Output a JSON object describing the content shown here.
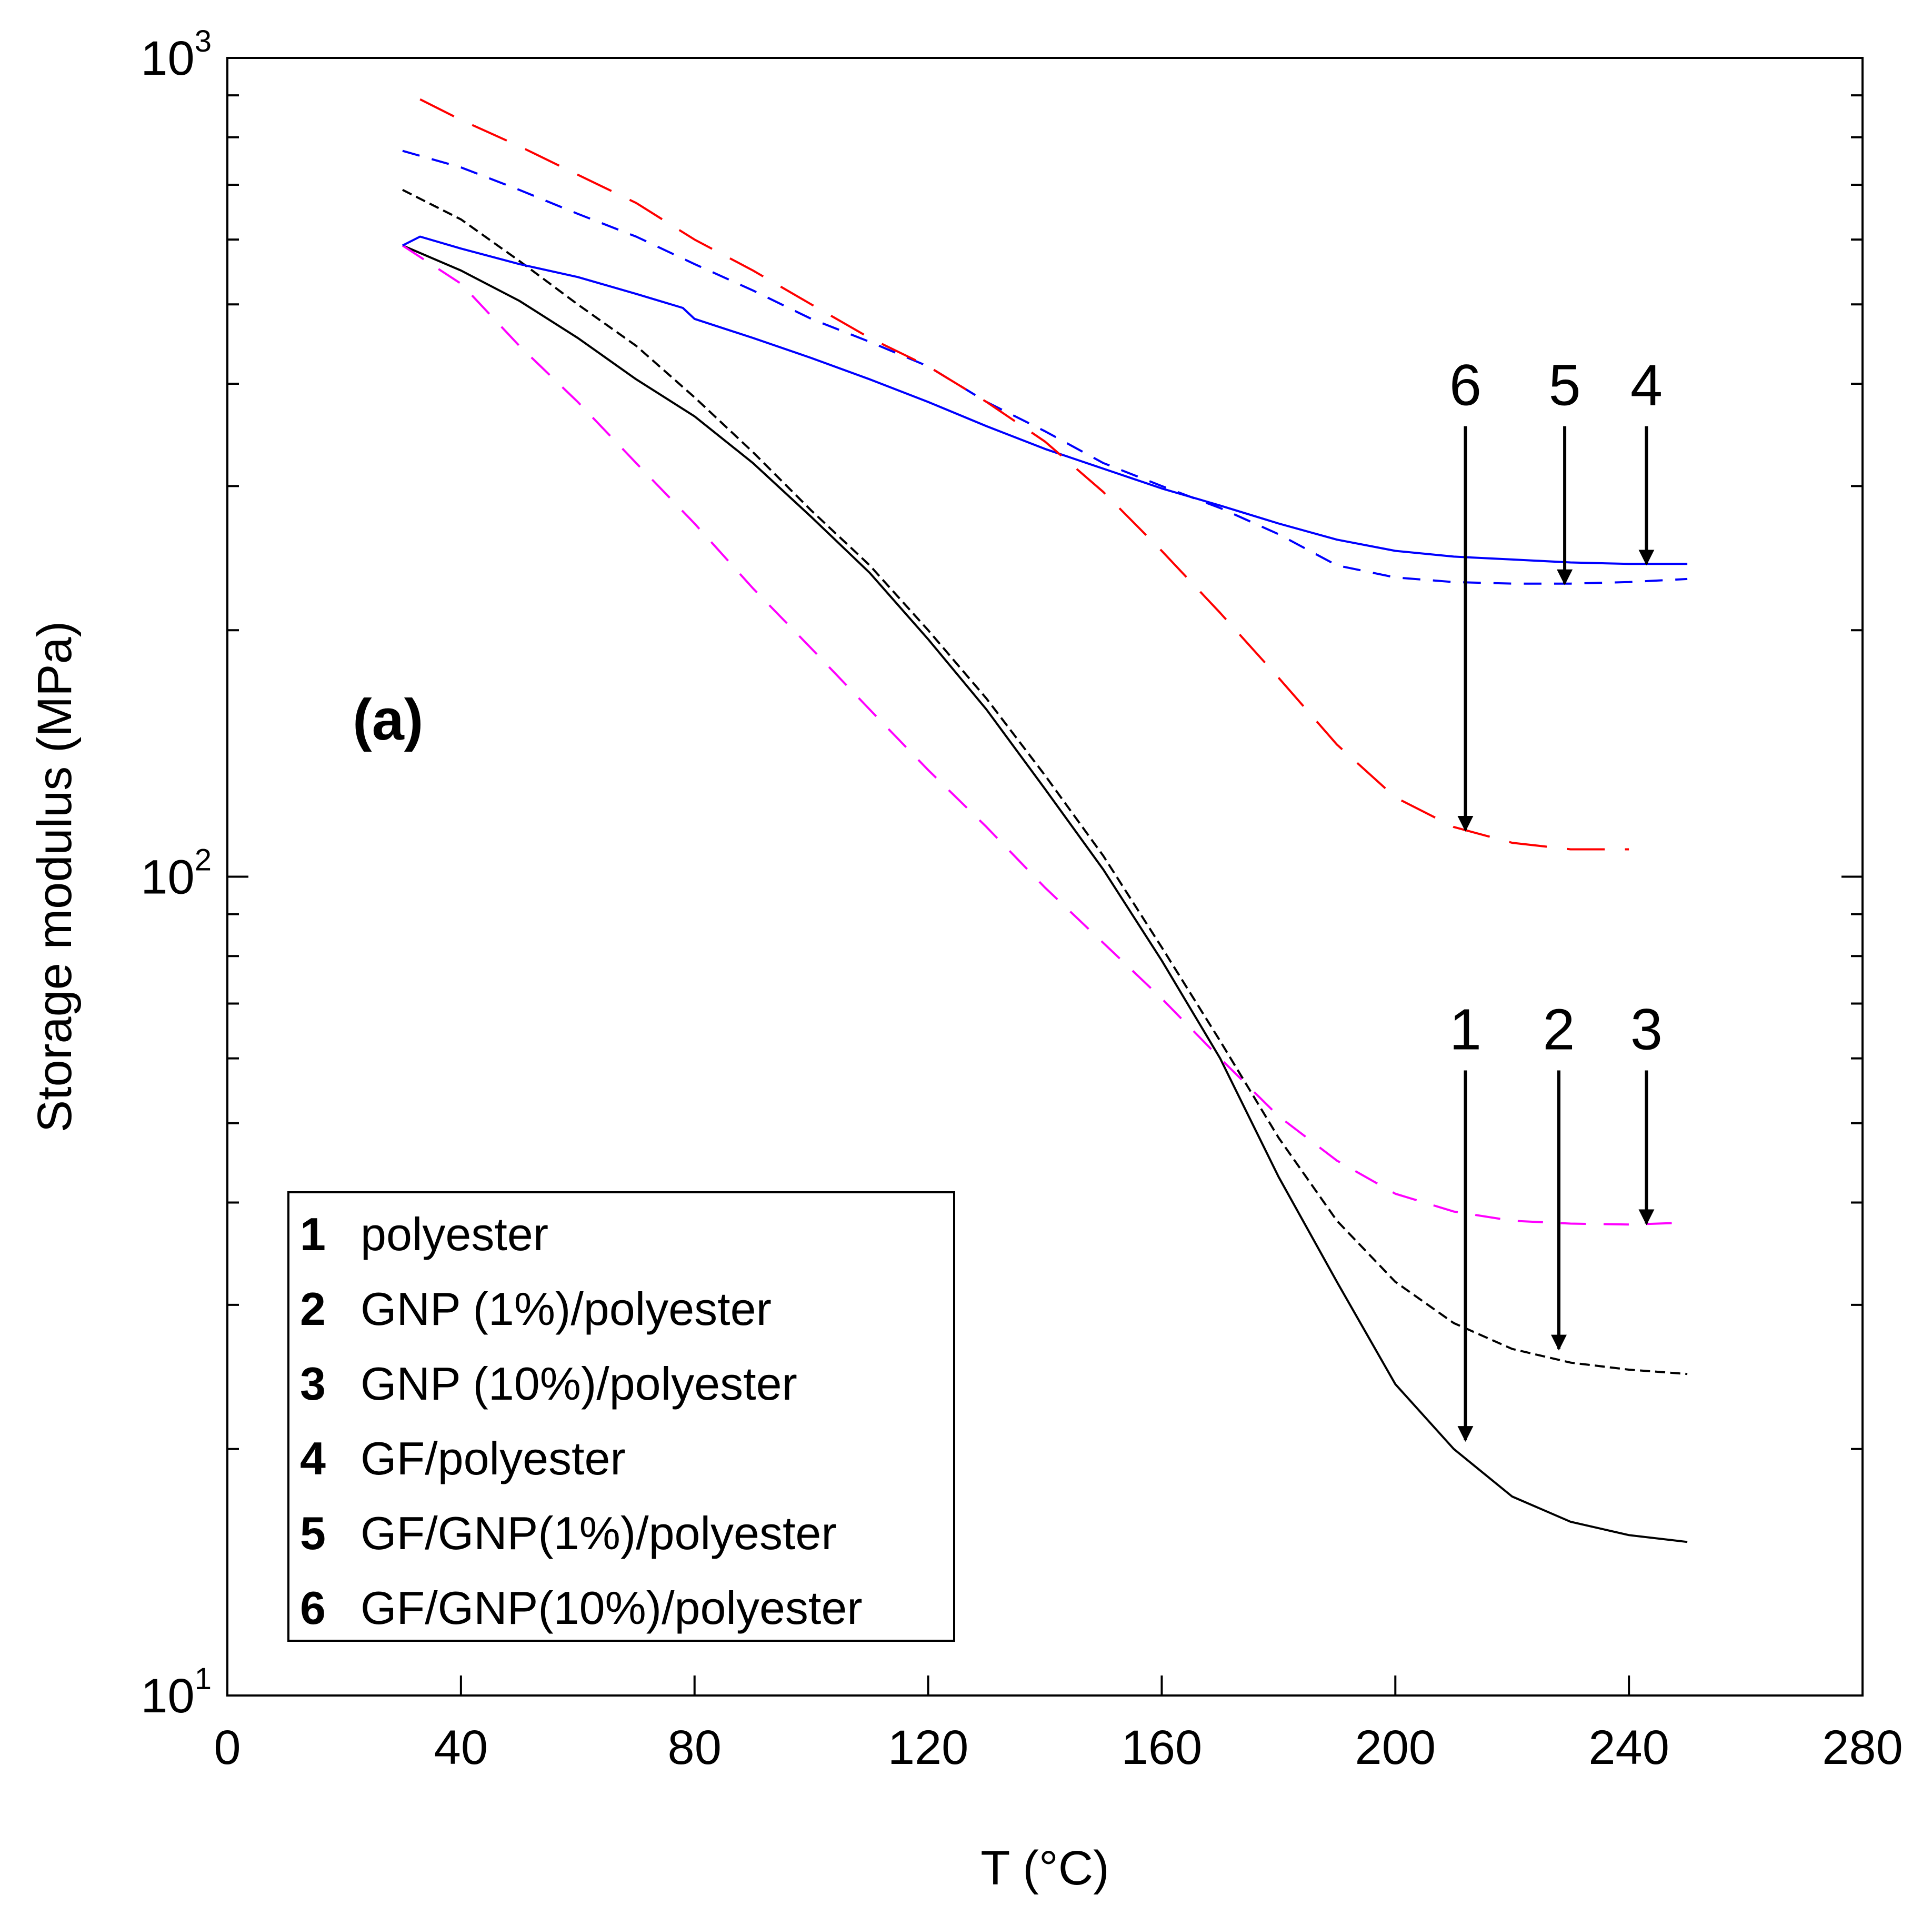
{
  "chart_data": {
    "type": "line",
    "panel_label": "(a)",
    "xlabel": "T (°C)",
    "ylabel": "Storage modulus (MPa)",
    "xlim": [
      0,
      280
    ],
    "ylim": [
      10,
      1000
    ],
    "yscale": "log",
    "x_ticks": [
      "0",
      "40",
      "80",
      "120",
      "160",
      "200",
      "240",
      "280"
    ],
    "y_tick_labels": [
      {
        "base": "10",
        "exp": "1",
        "value": 10
      },
      {
        "base": "10",
        "exp": "2",
        "value": 100
      },
      {
        "base": "10",
        "exp": "3",
        "value": 1000
      }
    ],
    "series": [
      {
        "id": "1",
        "name": "polyester",
        "color": "#000000",
        "dash": "solid",
        "x": [
          30,
          40,
          50,
          60,
          70,
          80,
          90,
          100,
          110,
          120,
          130,
          140,
          150,
          160,
          170,
          180,
          190,
          200,
          210,
          220,
          230,
          240,
          250
        ],
        "y": [
          590,
          550,
          505,
          455,
          405,
          365,
          320,
          275,
          235,
          195,
          160,
          128,
          102,
          79,
          60,
          43,
          32,
          24,
          20,
          17.5,
          16.3,
          15.7,
          15.4
        ]
      },
      {
        "id": "2",
        "name": "GNP (1%)/polyester",
        "color": "#000000",
        "dash": "8,4",
        "x": [
          30,
          40,
          50,
          60,
          70,
          80,
          90,
          100,
          110,
          120,
          130,
          140,
          150,
          160,
          170,
          180,
          190,
          200,
          210,
          220,
          230,
          240,
          250
        ],
        "y": [
          690,
          635,
          565,
          500,
          445,
          385,
          330,
          280,
          240,
          200,
          165,
          133,
          106,
          82,
          63,
          48,
          38,
          32,
          28.5,
          26.5,
          25.5,
          25,
          24.7
        ]
      },
      {
        "id": "3",
        "name": "GNP (10%)/polyester",
        "color": "#ff00ff",
        "dash": "20,14",
        "x": [
          30,
          40,
          50,
          60,
          70,
          80,
          90,
          100,
          110,
          120,
          130,
          140,
          150,
          160,
          170,
          180,
          190,
          200,
          210,
          220,
          230,
          240,
          250
        ],
        "y": [
          590,
          530,
          445,
          380,
          320,
          270,
          225,
          190,
          160,
          135,
          115,
          97,
          83,
          71,
          60,
          51,
          45,
          41,
          39,
          38,
          37.7,
          37.6,
          37.8
        ]
      },
      {
        "id": "4",
        "name": "GF/polyester",
        "color": "#0000ff",
        "dash": "solid",
        "x": [
          30,
          33,
          40,
          50,
          60,
          70,
          78,
          80,
          90,
          100,
          110,
          120,
          130,
          140,
          150,
          160,
          170,
          180,
          190,
          200,
          210,
          220,
          230,
          240,
          250
        ],
        "y": [
          590,
          605,
          585,
          560,
          540,
          515,
          495,
          480,
          455,
          430,
          405,
          380,
          355,
          333,
          315,
          298,
          284,
          270,
          258,
          250,
          246,
          244,
          242,
          241,
          241
        ]
      },
      {
        "id": "5",
        "name": "GF/GNP(1%)/polyester",
        "color": "#0000ff",
        "dash": "14,10",
        "x": [
          30,
          40,
          50,
          60,
          70,
          80,
          90,
          100,
          110,
          120,
          130,
          140,
          150,
          160,
          170,
          180,
          190,
          200,
          210,
          220,
          230,
          240,
          250
        ],
        "y": [
          770,
          735,
          690,
          645,
          605,
          560,
          520,
          480,
          450,
          420,
          380,
          350,
          320,
          300,
          282,
          262,
          240,
          232,
          229,
          228,
          228,
          229,
          231
        ]
      },
      {
        "id": "6",
        "name": "GF/GNP(10%)/polyester",
        "color": "#ff0000",
        "dash": "30,16",
        "x": [
          33,
          40,
          50,
          60,
          70,
          80,
          90,
          100,
          110,
          120,
          130,
          140,
          150,
          160,
          170,
          180,
          190,
          200,
          210,
          220,
          230,
          240
        ],
        "y": [
          890,
          840,
          780,
          720,
          665,
          600,
          550,
          500,
          455,
          420,
          380,
          340,
          295,
          250,
          210,
          175,
          145,
          125,
          115,
          110,
          108,
          108
        ]
      }
    ],
    "arrows": [
      {
        "label": "1",
        "x": 212,
        "y_from": 58,
        "y_to": 20.5
      },
      {
        "label": "2",
        "x": 228,
        "y_from": 58,
        "y_to": 26.5
      },
      {
        "label": "3",
        "x": 243,
        "y_from": 58,
        "y_to": 37.7
      },
      {
        "label": "4",
        "x": 243,
        "y_from": 355,
        "y_to": 241
      },
      {
        "label": "5",
        "x": 229,
        "y_from": 355,
        "y_to": 228
      },
      {
        "label": "6",
        "x": 212,
        "y_from": 355,
        "y_to": 114
      }
    ],
    "legend": [
      {
        "num": "1",
        "label": "polyester"
      },
      {
        "num": "2",
        "label": "GNP (1%)/polyester"
      },
      {
        "num": "3",
        "label": "GNP (10%)/polyester"
      },
      {
        "num": "4",
        "label": "GF/polyester"
      },
      {
        "num": "5",
        "label": "GF/GNP(1%)/polyester"
      },
      {
        "num": "6",
        "label": "GF/GNP(10%)/polyester"
      }
    ],
    "legend_position": "bottom-left"
  }
}
